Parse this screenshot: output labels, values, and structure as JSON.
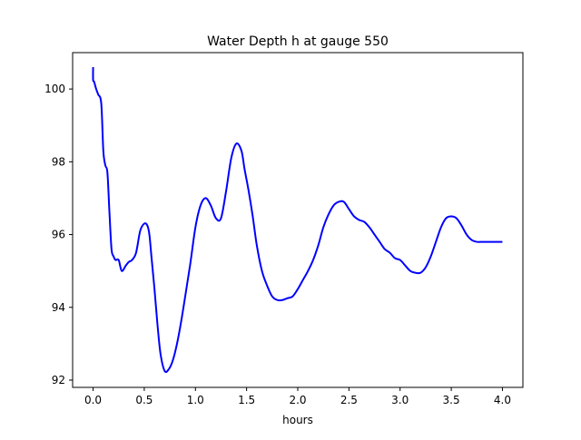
{
  "chart_data": {
    "type": "line",
    "title": "Water Depth h at gauge 550",
    "xlabel": "hours",
    "ylabel": "",
    "xlim": [
      -0.2,
      4.2
    ],
    "ylim": [
      91.8,
      101.0
    ],
    "xticks": [
      0.0,
      0.5,
      1.0,
      1.5,
      2.0,
      2.5,
      3.0,
      3.5,
      4.0
    ],
    "xtick_labels": [
      "0.0",
      "0.5",
      "1.0",
      "1.5",
      "2.0",
      "2.5",
      "3.0",
      "3.5",
      "4.0"
    ],
    "yticks": [
      92,
      94,
      96,
      98,
      100
    ],
    "ytick_labels": [
      "92",
      "94",
      "96",
      "98",
      "100"
    ],
    "grid": false,
    "line_color": "#0000ff",
    "series": [
      {
        "x": [
          0.0,
          0.0,
          0.01,
          0.03,
          0.05,
          0.08,
          0.1,
          0.12,
          0.14,
          0.16,
          0.18,
          0.2,
          0.22,
          0.25,
          0.28,
          0.32,
          0.35,
          0.38,
          0.42,
          0.46,
          0.5,
          0.53,
          0.55,
          0.57,
          0.6,
          0.63,
          0.66,
          0.7,
          0.74,
          0.78,
          0.82,
          0.86,
          0.9,
          0.95,
          1.0,
          1.05,
          1.1,
          1.15,
          1.2,
          1.25,
          1.3,
          1.35,
          1.4,
          1.45,
          1.48,
          1.52,
          1.56,
          1.6,
          1.65,
          1.7,
          1.75,
          1.8,
          1.85,
          1.9,
          1.95,
          2.0,
          2.05,
          2.1,
          2.15,
          2.2,
          2.25,
          2.3,
          2.35,
          2.4,
          2.45,
          2.5,
          2.55,
          2.6,
          2.65,
          2.7,
          2.75,
          2.8,
          2.85,
          2.9,
          2.95,
          3.0,
          3.05,
          3.1,
          3.15,
          3.2,
          3.25,
          3.3,
          3.35,
          3.4,
          3.45,
          3.5,
          3.55,
          3.6,
          3.65,
          3.7,
          3.75,
          3.8,
          3.85,
          3.9,
          3.95,
          4.0
        ],
        "y": [
          100.6,
          100.25,
          100.2,
          100.0,
          99.85,
          99.6,
          98.3,
          97.9,
          97.7,
          96.6,
          95.6,
          95.4,
          95.3,
          95.3,
          95.0,
          95.15,
          95.25,
          95.3,
          95.5,
          96.1,
          96.3,
          96.25,
          96.0,
          95.4,
          94.5,
          93.5,
          92.7,
          92.25,
          92.3,
          92.55,
          93.0,
          93.6,
          94.3,
          95.2,
          96.2,
          96.8,
          97.0,
          96.8,
          96.45,
          96.45,
          97.2,
          98.1,
          98.5,
          98.3,
          97.8,
          97.2,
          96.5,
          95.7,
          95.0,
          94.6,
          94.3,
          94.2,
          94.2,
          94.25,
          94.3,
          94.5,
          94.75,
          95.0,
          95.3,
          95.7,
          96.2,
          96.55,
          96.8,
          96.9,
          96.9,
          96.7,
          96.5,
          96.4,
          96.35,
          96.2,
          96.0,
          95.8,
          95.6,
          95.5,
          95.35,
          95.3,
          95.15,
          95.0,
          94.95,
          94.95,
          95.1,
          95.4,
          95.8,
          96.2,
          96.45,
          96.5,
          96.45,
          96.25,
          96.0,
          95.85,
          95.8,
          95.8,
          95.8,
          95.8,
          95.8,
          95.8
        ]
      }
    ]
  }
}
